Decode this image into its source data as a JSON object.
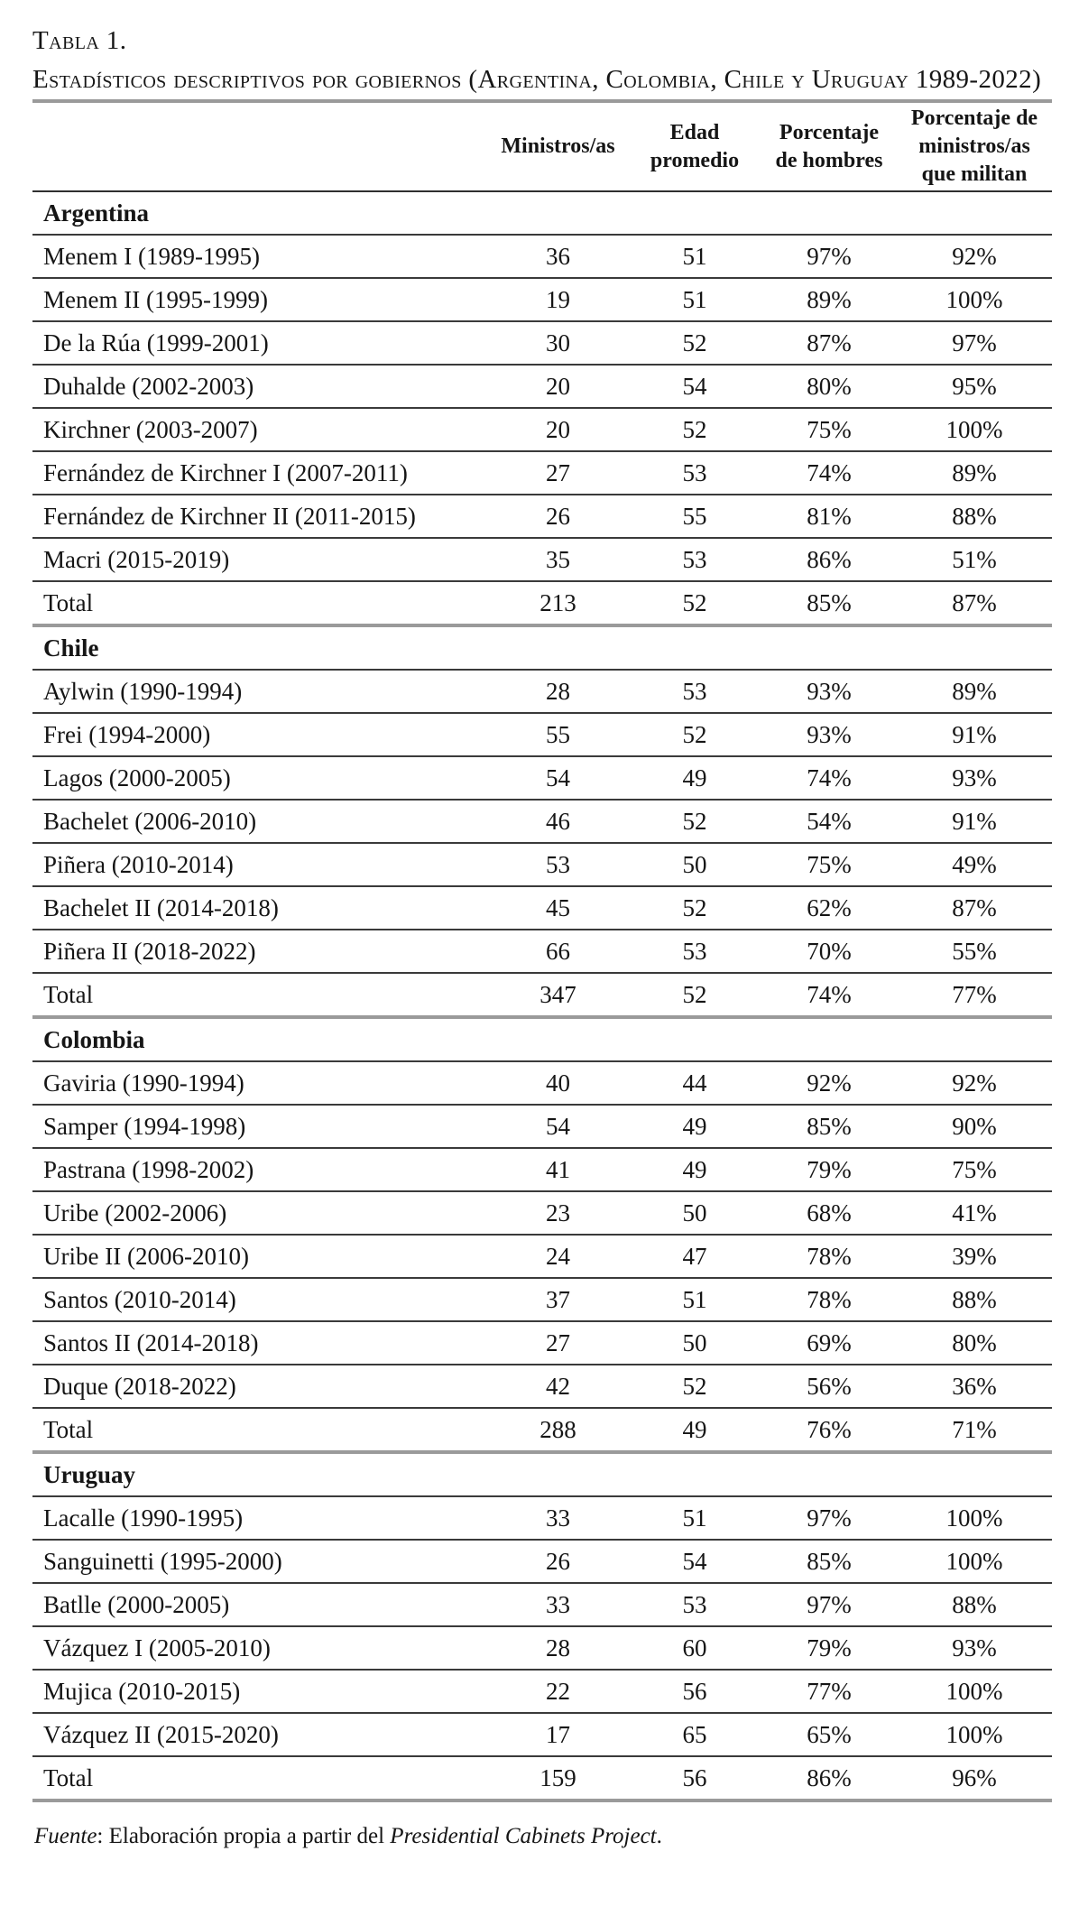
{
  "page": {
    "table_label": "Tabla 1.",
    "table_caption": "Estadísticos descriptivos por gobiernos (Argentina, Colombia, Chile y Uruguay 1989-2022)"
  },
  "table": {
    "columns": [
      "",
      "Ministros/as",
      "Edad promedio",
      "Porcentaje de hombres",
      "Porcentaje de ministros/as que militan"
    ],
    "sections": [
      {
        "name": "Argentina",
        "rows": [
          [
            "Menem I (1989-1995)",
            "36",
            "51",
            "97%",
            "92%"
          ],
          [
            "Menem II (1995-1999)",
            "19",
            "51",
            "89%",
            "100%"
          ],
          [
            "De la Rúa (1999-2001)",
            "30",
            "52",
            "87%",
            "97%"
          ],
          [
            "Duhalde (2002-2003)",
            "20",
            "54",
            "80%",
            "95%"
          ],
          [
            "Kirchner (2003-2007)",
            "20",
            "52",
            "75%",
            "100%"
          ],
          [
            "Fernández de Kirchner I (2007-2011)",
            "27",
            "53",
            "74%",
            "89%"
          ],
          [
            "Fernández de Kirchner II (2011-2015)",
            "26",
            "55",
            "81%",
            "88%"
          ],
          [
            "Macri (2015-2019)",
            "35",
            "53",
            "86%",
            "51%"
          ],
          [
            "Total",
            "213",
            "52",
            "85%",
            "87%"
          ]
        ]
      },
      {
        "name": "Chile",
        "rows": [
          [
            "Aylwin (1990-1994)",
            "28",
            "53",
            "93%",
            "89%"
          ],
          [
            "Frei (1994-2000)",
            "55",
            "52",
            "93%",
            "91%"
          ],
          [
            "Lagos (2000-2005)",
            "54",
            "49",
            "74%",
            "93%"
          ],
          [
            "Bachelet (2006-2010)",
            "46",
            "52",
            "54%",
            "91%"
          ],
          [
            "Piñera (2010-2014)",
            "53",
            "50",
            "75%",
            "49%"
          ],
          [
            "Bachelet II (2014-2018)",
            "45",
            "52",
            "62%",
            "87%"
          ],
          [
            "Piñera II (2018-2022)",
            "66",
            "53",
            "70%",
            "55%"
          ],
          [
            "Total",
            "347",
            "52",
            "74%",
            "77%"
          ]
        ]
      },
      {
        "name": "Colombia",
        "rows": [
          [
            "Gaviria (1990-1994)",
            "40",
            "44",
            "92%",
            "92%"
          ],
          [
            "Samper (1994-1998)",
            "54",
            "49",
            "85%",
            "90%"
          ],
          [
            "Pastrana (1998-2002)",
            "41",
            "49",
            "79%",
            "75%"
          ],
          [
            "Uribe (2002-2006)",
            "23",
            "50",
            "68%",
            "41%"
          ],
          [
            "Uribe II (2006-2010)",
            "24",
            "47",
            "78%",
            "39%"
          ],
          [
            "Santos (2010-2014)",
            "37",
            "51",
            "78%",
            "88%"
          ],
          [
            "Santos II (2014-2018)",
            "27",
            "50",
            "69%",
            "80%"
          ],
          [
            "Duque (2018-2022)",
            "42",
            "52",
            "56%",
            "36%"
          ],
          [
            "Total",
            "288",
            "49",
            "76%",
            "71%"
          ]
        ]
      },
      {
        "name": "Uruguay",
        "rows": [
          [
            "Lacalle (1990-1995)",
            "33",
            "51",
            "97%",
            "100%"
          ],
          [
            "Sanguinetti (1995-2000)",
            "26",
            "54",
            "85%",
            "100%"
          ],
          [
            "Batlle (2000-2005)",
            "33",
            "53",
            "97%",
            "88%"
          ],
          [
            "Vázquez I (2005-2010)",
            "28",
            "60",
            "79%",
            "93%"
          ],
          [
            "Mujica (2010-2015)",
            "22",
            "56",
            "77%",
            "100%"
          ],
          [
            "Vázquez II (2015-2020)",
            "17",
            "65",
            "65%",
            "100%"
          ],
          [
            "Total",
            "159",
            "56",
            "86%",
            "96%"
          ]
        ]
      }
    ]
  },
  "footer": {
    "source_label": "Fuente",
    "source_text": ": Elaboración propia a partir del ",
    "source_name": "Presidential Cabinets Project",
    "source_suffix": "."
  },
  "colors": {
    "rule_thick": "#9a9a9a",
    "rule_thin": "#3a3a3a",
    "header_rule": "#2f2f2f",
    "text": "#151515",
    "background": "#ffffff"
  }
}
